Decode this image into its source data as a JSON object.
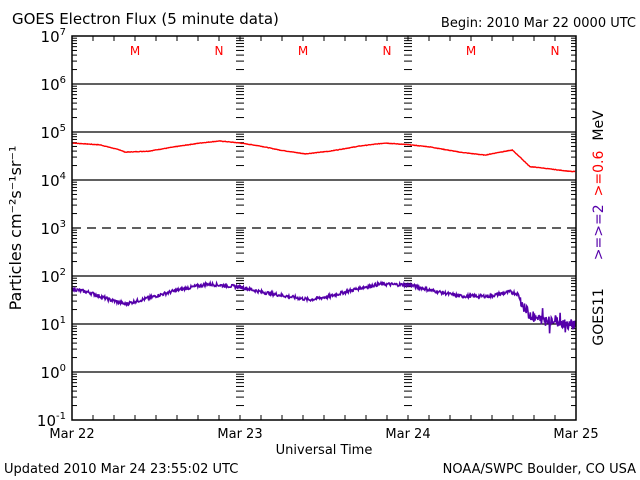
{
  "header": {
    "title": "GOES Electron Flux (5 minute data)",
    "begin": "Begin: 2010 Mar 22 0000 UTC"
  },
  "footer": {
    "updated": "Updated 2010 Mar 24 23:55:02 UTC",
    "source": "NOAA/SWPC Boulder, CO USA"
  },
  "chart_data": {
    "type": "line",
    "title": "GOES Electron Flux (5 minute data)",
    "xlabel": "Universal Time",
    "ylabel": "Particles cm⁻²s⁻¹sr⁻¹",
    "yscale": "log",
    "ylim": [
      0.1,
      10000000
    ],
    "xlim_hours": [
      0,
      72
    ],
    "x_ticks": [
      {
        "hour": 0,
        "label": "Mar 22"
      },
      {
        "hour": 24,
        "label": "Mar 23"
      },
      {
        "hour": 48,
        "label": "Mar 24"
      },
      {
        "hour": 72,
        "label": "Mar 25"
      }
    ],
    "y_ticks": [
      {
        "exp": 7,
        "base": "10",
        "sup": "7"
      },
      {
        "exp": 6,
        "base": "10",
        "sup": "6"
      },
      {
        "exp": 5,
        "base": "10",
        "sup": "5"
      },
      {
        "exp": 4,
        "base": "10",
        "sup": "4"
      },
      {
        "exp": 3,
        "base": "10",
        "sup": "3"
      },
      {
        "exp": 2,
        "base": "10",
        "sup": "2"
      },
      {
        "exp": 1,
        "base": "10",
        "sup": "1"
      },
      {
        "exp": 0,
        "base": "10",
        "sup": "0"
      },
      {
        "exp": -1,
        "base": "10",
        "sup": "-1"
      }
    ],
    "dashed_level_exp": 3,
    "markers": [
      {
        "hour": 9,
        "label": "M"
      },
      {
        "hour": 21,
        "label": "N"
      },
      {
        "hour": 33,
        "label": "M"
      },
      {
        "hour": 45,
        "label": "N"
      },
      {
        "hour": 57,
        "label": "M"
      },
      {
        "hour": 69,
        "label": "N"
      }
    ],
    "satellite_label": "GOES11",
    "units_label": "MeV",
    "series": [
      {
        "name": ">=0.6",
        "color": "#ff0000",
        "hours": [
          0,
          4,
          6.9,
          7.6,
          11,
          14.6,
          18.3,
          21.1,
          24,
          26.9,
          29.7,
          33.3,
          36.9,
          41.1,
          44.7,
          48.3,
          51.1,
          55.4,
          59,
          61.1,
          62.9,
          64,
          65.4,
          66.9,
          69.7,
          71.4
        ],
        "values": [
          59000,
          54000,
          42000,
          38000,
          40000,
          49000,
          59000,
          65000,
          59000,
          51000,
          42000,
          35000,
          40000,
          51000,
          59000,
          54000,
          49000,
          38000,
          33000,
          38000,
          42000,
          30000,
          19000,
          18000,
          16000,
          15000
        ]
      },
      {
        "name": ">=2",
        "color": "#5500aa",
        "hours": [
          0,
          2.6,
          5.4,
          7.6,
          11,
          15.1,
          19.4,
          24,
          26.9,
          31.1,
          34,
          36.9,
          41.1,
          44,
          48.3,
          51.1,
          55.4,
          59.7,
          62.6,
          63.7,
          64.7,
          66.1,
          68.3,
          71.4
        ],
        "values": [
          54,
          45,
          32,
          26,
          35,
          51,
          68,
          59,
          47,
          37,
          32,
          38,
          56,
          68,
          65,
          51,
          38,
          38,
          47,
          42,
          20,
          13,
          12,
          10
        ]
      }
    ]
  }
}
